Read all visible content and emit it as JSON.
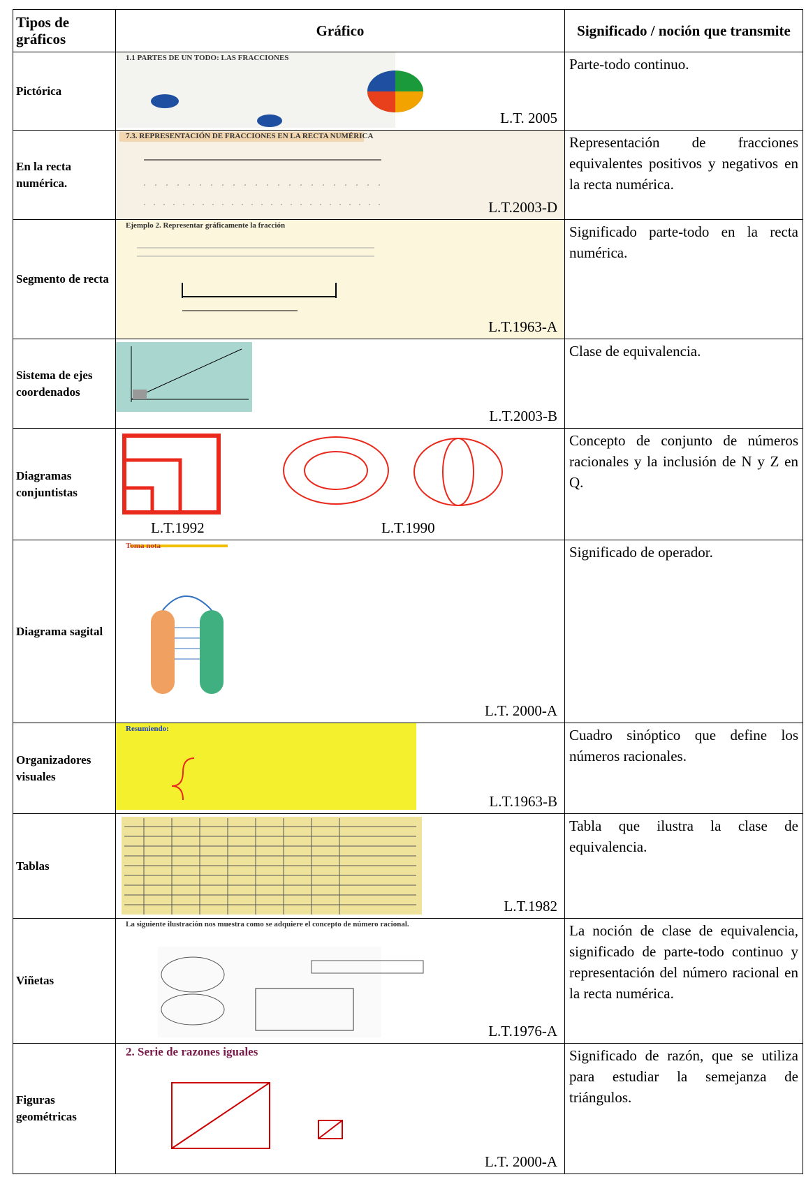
{
  "table": {
    "header": [
      "Tipos de gráficos",
      "Gráfico",
      "Significado / noción que transmite"
    ],
    "rows": [
      {
        "type": "Pictórica",
        "image_text": "1.1 PARTES DE UN TODO: LAS FRACCIONES",
        "sources": [
          "L.T. 2005"
        ],
        "meaning": "Parte-todo continuo."
      },
      {
        "type": "En la recta numérica.",
        "image_text": "7.3. REPRESENTACIÓN DE FRACCIONES EN LA RECTA NUMÉRICA",
        "sources": [
          "L.T.2003-D"
        ],
        "meaning": "Representación de fracciones equivalentes positivos y negativos en la recta numérica."
      },
      {
        "type": "Segmento de recta",
        "image_text": "Ejemplo 2. Representar gráficamente la fracción",
        "sources": [
          "L.T.1963-A"
        ],
        "meaning": "Significado parte-todo en la recta numérica."
      },
      {
        "type": "Sistema de ejes coordenados",
        "sources": [
          "L.T.2003-B"
        ],
        "meaning": "Clase de equivalencia."
      },
      {
        "type": "Diagramas conjuntistas",
        "sources": [
          "L.T.1992",
          "L.T.1990"
        ],
        "meaning": "Concepto de conjunto de números racionales y la inclusión de N y Z en Q."
      },
      {
        "type": "Diagrama sagital",
        "image_text": "Toma nota",
        "sources": [
          "L.T. 2000-A"
        ],
        "meaning": "Significado de operador."
      },
      {
        "type": "Organizadores visuales",
        "image_text": "Resumiendo:",
        "sources": [
          "L.T.1963-B"
        ],
        "meaning": "Cuadro sinóptico que define los números racionales."
      },
      {
        "type": "Tablas",
        "sources": [
          "L.T.1982"
        ],
        "meaning": "Tabla que ilustra la clase de equivalencia."
      },
      {
        "type": "Viñetas",
        "image_text": "La siguiente ilustración nos muestra como se adquiere el concepto de número racional.",
        "sources": [
          "L.T.1976-A"
        ],
        "meaning": "La noción de clase de equivalencia, significado de parte-todo continuo y representación del número racional en la recta numérica."
      },
      {
        "type": "Figuras geométricas",
        "image_text": "2. Serie de razones iguales",
        "sources": [
          "L.T. 2000-A"
        ],
        "meaning": "Significado de razón, que se utiliza para estudiar la semejanza de triángulos."
      }
    ]
  }
}
